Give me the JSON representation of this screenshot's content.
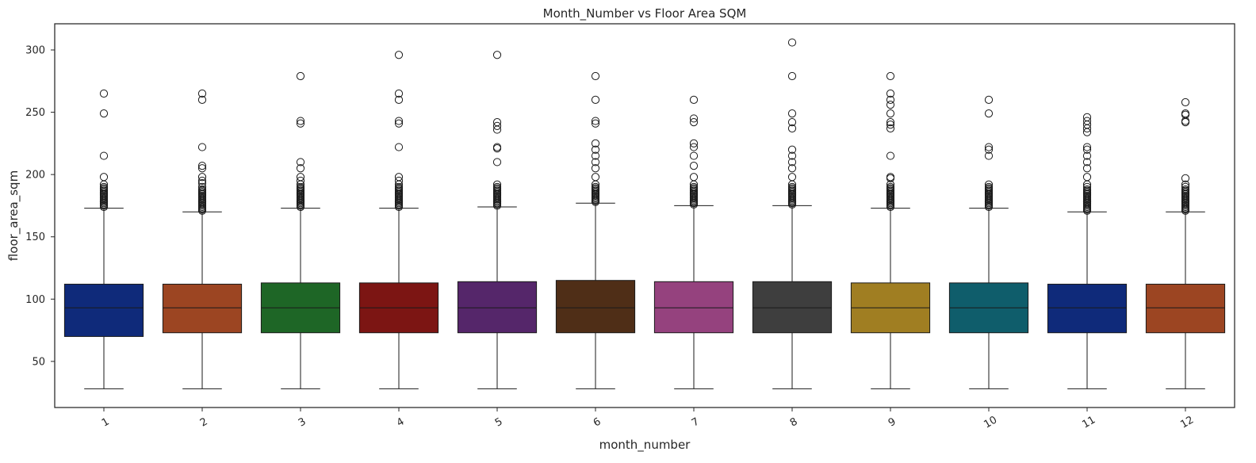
{
  "chart_data": {
    "type": "box",
    "title": "Month_Number vs Floor Area SQM",
    "xlabel": "month_number",
    "ylabel": "floor_area_sqm",
    "ylim": [
      13,
      321
    ],
    "yticks": [
      50,
      100,
      150,
      200,
      250,
      300
    ],
    "grid": false,
    "legend": "none",
    "categories": [
      "1",
      "2",
      "3",
      "4",
      "5",
      "6",
      "7",
      "8",
      "9",
      "10",
      "11",
      "12"
    ],
    "colors": [
      "#0f2a7a",
      "#9c4522",
      "#1e6626",
      "#7c1513",
      "#55266a",
      "#4f2e17",
      "#95427e",
      "#3e3e3e",
      "#a07e22",
      "#0f5d6b",
      "#0f2a7a",
      "#9c4522"
    ],
    "boxes": [
      {
        "category": "1",
        "whisker_low": 28,
        "q1": 70,
        "median": 93,
        "q3": 112,
        "whisker_high": 173,
        "outliers": [
          174,
          175,
          176,
          177,
          178,
          179,
          180,
          181,
          182,
          183,
          184,
          185,
          186,
          187,
          188,
          189,
          190,
          192,
          198,
          215,
          249,
          265
        ]
      },
      {
        "category": "2",
        "whisker_low": 28,
        "q1": 73,
        "median": 93,
        "q3": 112,
        "whisker_high": 170,
        "outliers": [
          171,
          172,
          173,
          174,
          175,
          176,
          177,
          178,
          179,
          180,
          181,
          182,
          183,
          184,
          185,
          186,
          187,
          188,
          190,
          193,
          195,
          198,
          205,
          207,
          222,
          260,
          265
        ]
      },
      {
        "category": "3",
        "whisker_low": 28,
        "q1": 73,
        "median": 93,
        "q3": 113,
        "whisker_high": 173,
        "outliers": [
          174,
          175,
          176,
          177,
          178,
          179,
          180,
          181,
          182,
          183,
          184,
          185,
          186,
          187,
          188,
          189,
          190,
          192,
          195,
          198,
          205,
          210,
          241,
          243,
          279
        ]
      },
      {
        "category": "4",
        "whisker_low": 28,
        "q1": 73,
        "median": 93,
        "q3": 113,
        "whisker_high": 173,
        "outliers": [
          174,
          175,
          176,
          177,
          178,
          179,
          180,
          181,
          182,
          183,
          184,
          185,
          186,
          187,
          188,
          189,
          190,
          192,
          195,
          198,
          222,
          241,
          243,
          260,
          265,
          296
        ]
      },
      {
        "category": "5",
        "whisker_low": 28,
        "q1": 73,
        "median": 93,
        "q3": 114,
        "whisker_high": 174,
        "outliers": [
          175,
          176,
          177,
          178,
          179,
          180,
          181,
          182,
          183,
          184,
          185,
          186,
          187,
          188,
          189,
          190,
          192,
          210,
          221,
          222,
          236,
          239,
          242,
          296
        ]
      },
      {
        "category": "6",
        "whisker_low": 28,
        "q1": 73,
        "median": 93,
        "q3": 115,
        "whisker_high": 177,
        "outliers": [
          178,
          179,
          180,
          181,
          182,
          183,
          184,
          185,
          186,
          187,
          188,
          189,
          190,
          192,
          198,
          205,
          210,
          215,
          220,
          225,
          241,
          243,
          260,
          279
        ]
      },
      {
        "category": "7",
        "whisker_low": 28,
        "q1": 73,
        "median": 93,
        "q3": 114,
        "whisker_high": 175,
        "outliers": [
          176,
          177,
          178,
          179,
          180,
          181,
          182,
          183,
          184,
          185,
          186,
          187,
          188,
          189,
          190,
          192,
          198,
          207,
          215,
          222,
          225,
          242,
          245,
          260
        ]
      },
      {
        "category": "8",
        "whisker_low": 28,
        "q1": 73,
        "median": 93,
        "q3": 114,
        "whisker_high": 175,
        "outliers": [
          176,
          177,
          178,
          179,
          180,
          181,
          182,
          183,
          184,
          185,
          186,
          187,
          188,
          189,
          190,
          192,
          198,
          205,
          210,
          215,
          220,
          237,
          242,
          249,
          279,
          306
        ]
      },
      {
        "category": "9",
        "whisker_low": 28,
        "q1": 73,
        "median": 93,
        "q3": 113,
        "whisker_high": 173,
        "outliers": [
          174,
          175,
          176,
          177,
          178,
          179,
          180,
          181,
          182,
          183,
          184,
          185,
          186,
          187,
          188,
          189,
          190,
          192,
          197,
          198,
          215,
          237,
          240,
          242,
          249,
          256,
          260,
          265,
          279
        ]
      },
      {
        "category": "10",
        "whisker_low": 28,
        "q1": 73,
        "median": 93,
        "q3": 113,
        "whisker_high": 173,
        "outliers": [
          174,
          175,
          176,
          177,
          178,
          179,
          180,
          181,
          182,
          183,
          184,
          185,
          186,
          187,
          188,
          189,
          190,
          192,
          215,
          220,
          222,
          249,
          260
        ]
      },
      {
        "category": "11",
        "whisker_low": 28,
        "q1": 73,
        "median": 93,
        "q3": 112,
        "whisker_high": 170,
        "outliers": [
          171,
          172,
          173,
          174,
          175,
          176,
          177,
          178,
          179,
          180,
          181,
          182,
          183,
          184,
          185,
          186,
          187,
          188,
          190,
          192,
          198,
          205,
          210,
          215,
          220,
          222,
          234,
          237,
          240,
          243,
          246
        ]
      },
      {
        "category": "12",
        "whisker_low": 28,
        "q1": 73,
        "median": 93,
        "q3": 112,
        "whisker_high": 170,
        "outliers": [
          171,
          172,
          173,
          174,
          175,
          176,
          177,
          178,
          179,
          180,
          181,
          182,
          183,
          184,
          185,
          186,
          187,
          188,
          190,
          192,
          197,
          242,
          243,
          248,
          249,
          258
        ]
      }
    ]
  }
}
